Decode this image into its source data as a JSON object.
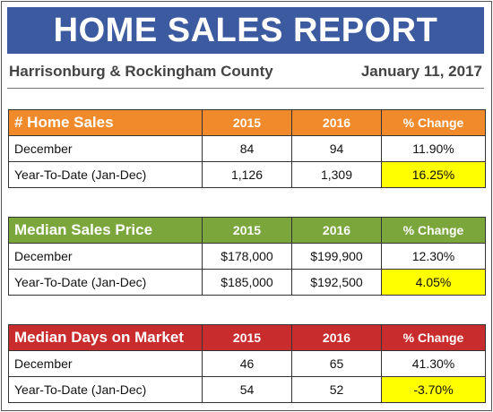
{
  "title": "HOME SALES REPORT",
  "region": "Harrisonburg & Rockingham County",
  "date": "January 11, 2017",
  "tables": [
    {
      "header": [
        "# Home Sales",
        "2015",
        "2016",
        "% Change"
      ],
      "header_color": "#f08a2b",
      "rows": [
        [
          "December",
          "84",
          "94",
          "11.90%"
        ],
        [
          "Year-To-Date (Jan-Dec)",
          "1,126",
          "1,309",
          "16.25%"
        ]
      ]
    },
    {
      "header": [
        "Median Sales Price",
        "2015",
        "2016",
        "% Change"
      ],
      "header_color": "#7aa63c",
      "rows": [
        [
          "December",
          "$178,000",
          "$199,900",
          "12.30%"
        ],
        [
          "Year-To-Date (Jan-Dec)",
          "$185,000",
          "$192,500",
          "4.05%"
        ]
      ]
    },
    {
      "header": [
        "Median Days on Market",
        "2015",
        "2016",
        "% Change"
      ],
      "header_color": "#c92c2c",
      "rows": [
        [
          "December",
          "46",
          "65",
          "41.30%"
        ],
        [
          "Year-To-Date (Jan-Dec)",
          "54",
          "52",
          "-3.70%"
        ]
      ]
    }
  ],
  "highlight_color": "#ffff00"
}
